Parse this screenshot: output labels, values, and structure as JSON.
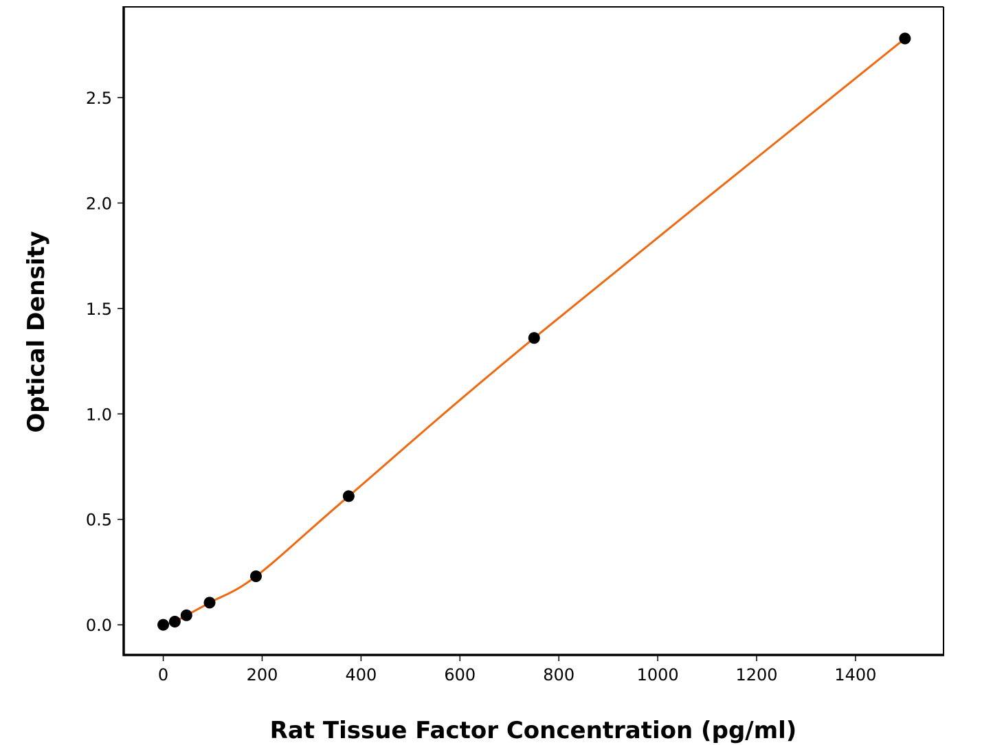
{
  "chart_data": {
    "type": "scatter",
    "x_label": "Rat Tissue Factor Concentration (pg/ml)",
    "y_label": "Optical Density",
    "series": [
      {
        "color": "#000000",
        "line_color": "#ec6a12",
        "x": [
          0,
          23.4,
          46.9,
          93.75,
          187.5,
          375,
          750,
          1500
        ],
        "values": [
          0,
          0.015,
          0.045,
          0.105,
          0.23,
          0.61,
          1.36,
          2.78
        ]
      }
    ],
    "xlim": [
      -80,
      1578
    ],
    "xticks": [
      0,
      200,
      400,
      600,
      800,
      1000,
      1200,
      1400
    ],
    "ylim": [
      -0.143,
      2.93
    ],
    "yticks": [
      {
        "value": 0,
        "label": "0.0"
      },
      {
        "value": 0.5,
        "label": "0.5"
      },
      {
        "value": 1,
        "label": "1.0"
      },
      {
        "value": 1.5,
        "label": "1.5"
      },
      {
        "value": 2,
        "label": "2.0"
      },
      {
        "value": 2.5,
        "label": "2.5"
      }
    ]
  }
}
